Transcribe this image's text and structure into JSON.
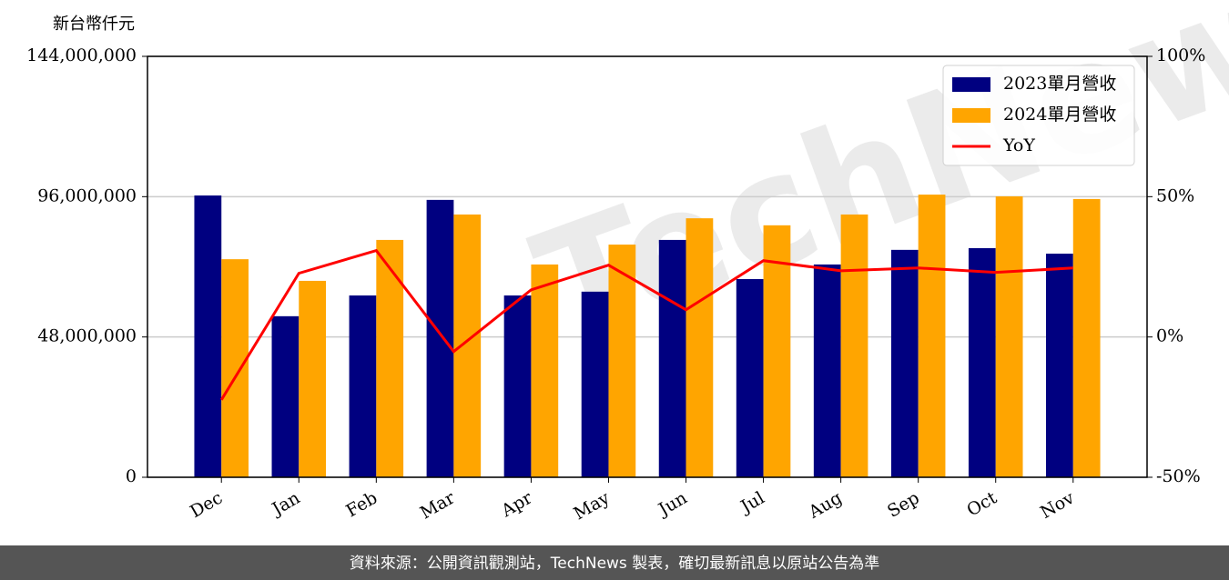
{
  "chart_data": {
    "type": "bar",
    "y_axis_label": "新台幣仟元",
    "categories": [
      "Dec",
      "Jan",
      "Feb",
      "Mar",
      "Apr",
      "May",
      "Jun",
      "Jul",
      "Aug",
      "Sep",
      "Oct",
      "Nov"
    ],
    "series": [
      {
        "name": "2023單月營收",
        "color": "#000080",
        "values": [
          96400000,
          55100000,
          62200000,
          94900000,
          62200000,
          63500000,
          81200000,
          67800000,
          72800000,
          77800000,
          78400000,
          76500000
        ]
      },
      {
        "name": "2024單月營收",
        "color": "#ffa500",
        "values": [
          74600000,
          67200000,
          81200000,
          89900000,
          72800000,
          79600000,
          88600000,
          86200000,
          89900000,
          96700000,
          96100000,
          95200000
        ]
      },
      {
        "name": "YoY",
        "type": "line",
        "axis": "y2",
        "color": "#ff0000",
        "values": [
          -22.4,
          22.7,
          30.8,
          -5.2,
          16.8,
          25.6,
          9.7,
          27.2,
          23.6,
          24.6,
          23.0,
          24.6
        ]
      }
    ],
    "ylim": [
      0,
      144000000
    ],
    "yticks": [
      0,
      {
        "value": 48000000,
        "label": "48,000,000"
      },
      {
        "value": 96000000,
        "label": "96,000,000"
      },
      {
        "value": 144000000,
        "label": "144,000,000"
      }
    ],
    "y2lim": [
      -50,
      100
    ],
    "y2ticks": [
      {
        "value": -50,
        "label": "-50%"
      },
      {
        "value": 0,
        "label": "0%"
      },
      {
        "value": 50,
        "label": "50%"
      },
      {
        "value": 100,
        "label": "100%"
      }
    ],
    "grid": true,
    "legend": "upper right",
    "watermark": "TechNews",
    "footer": "資料來源：公開資訊觀測站，TechNews 製表，確切最新訊息以原站公告為準"
  }
}
